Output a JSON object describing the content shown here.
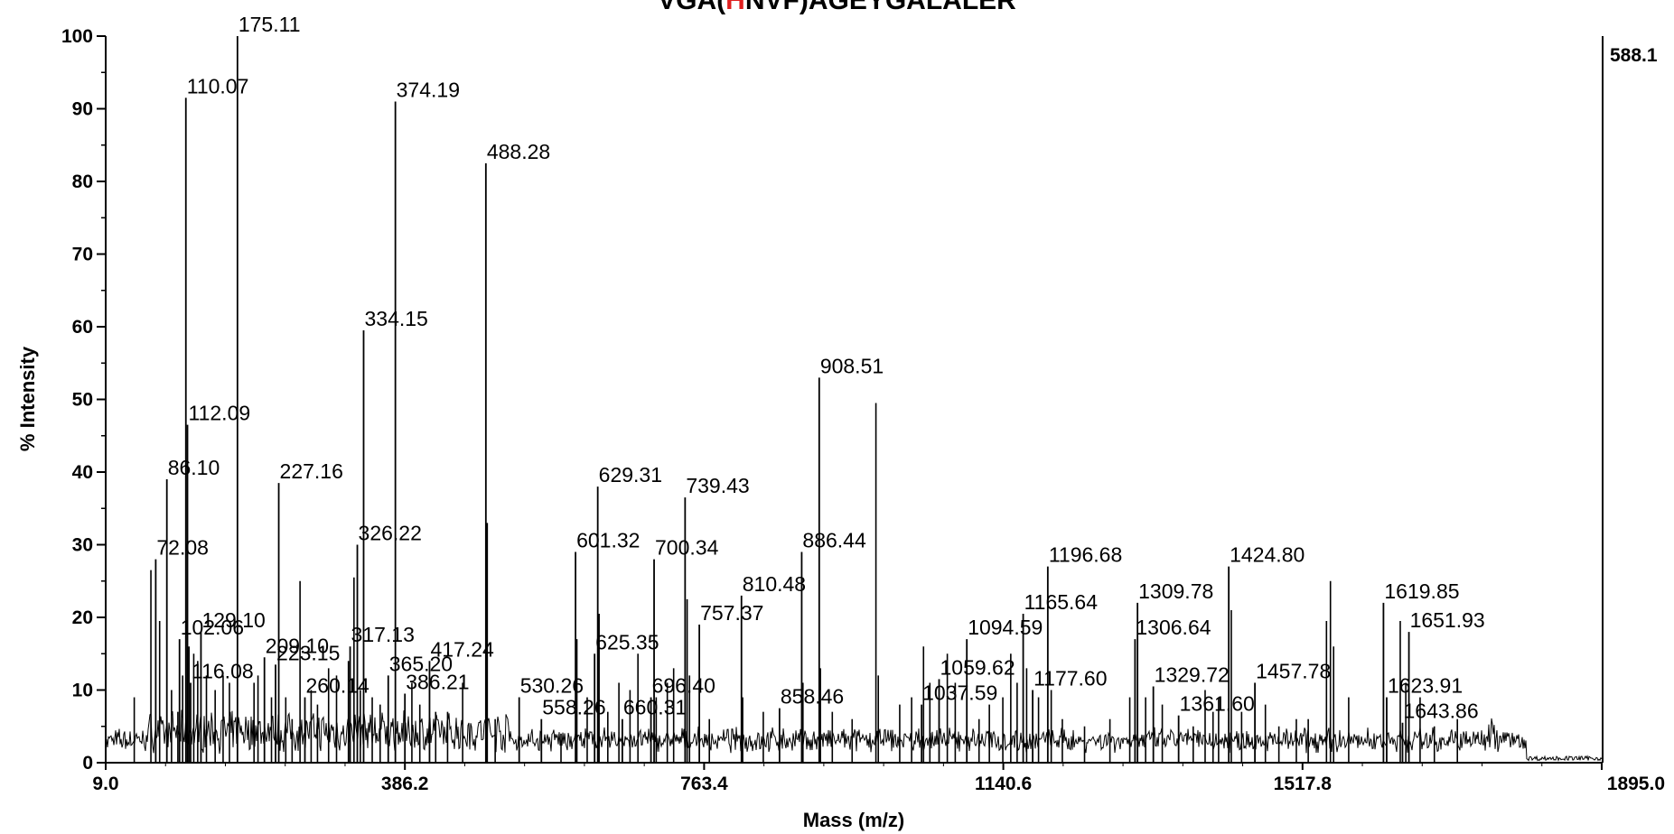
{
  "title": {
    "prefix": "VGA(",
    "highlight": "H",
    "suffix": "NVF)AGEYGALALER",
    "highlight_color": "#e02020"
  },
  "base_peak_label": "588.1",
  "chart_data": {
    "type": "line",
    "subtype": "mass-spectrum",
    "xlabel": "Mass (m/z)",
    "ylabel": "% Intensity",
    "xlim": [
      9.0,
      1895.0
    ],
    "ylim": [
      0,
      100
    ],
    "x_ticks": [
      "9.0",
      "386.2",
      "763.4",
      "1140.6",
      "1517.8",
      "1895.0"
    ],
    "y_ticks": [
      "0",
      "10",
      "20",
      "30",
      "40",
      "50",
      "60",
      "70",
      "80",
      "90",
      "100"
    ],
    "grid": false,
    "color": "#000000",
    "labeled_peaks": [
      {
        "mz": 72.08,
        "intensity": 28,
        "label": "72.08"
      },
      {
        "mz": 86.1,
        "intensity": 39,
        "label": "86.10"
      },
      {
        "mz": 102.06,
        "intensity": 17,
        "label": "102.06"
      },
      {
        "mz": 110.07,
        "intensity": 91.5,
        "label": "110.07"
      },
      {
        "mz": 112.09,
        "intensity": 46.5,
        "label": "112.09"
      },
      {
        "mz": 116.08,
        "intensity": 11,
        "label": "116.08"
      },
      {
        "mz": 129.1,
        "intensity": 18,
        "label": "129.10"
      },
      {
        "mz": 175.11,
        "intensity": 100,
        "label": "175.11"
      },
      {
        "mz": 209.1,
        "intensity": 14.5,
        "label": "209.10"
      },
      {
        "mz": 223.15,
        "intensity": 13.5,
        "label": "223.15"
      },
      {
        "mz": 227.16,
        "intensity": 38.5,
        "label": "227.16"
      },
      {
        "mz": 260.14,
        "intensity": 9,
        "label": "260.14"
      },
      {
        "mz": 317.13,
        "intensity": 16,
        "label": "317.13"
      },
      {
        "mz": 326.22,
        "intensity": 30,
        "label": "326.22"
      },
      {
        "mz": 334.15,
        "intensity": 59.5,
        "label": "334.15"
      },
      {
        "mz": 365.2,
        "intensity": 12,
        "label": "365.20"
      },
      {
        "mz": 374.19,
        "intensity": 91,
        "label": "374.19"
      },
      {
        "mz": 386.21,
        "intensity": 9.5,
        "label": "386.21"
      },
      {
        "mz": 417.24,
        "intensity": 14,
        "label": "417.24"
      },
      {
        "mz": 488.28,
        "intensity": 82.5,
        "label": "488.28"
      },
      {
        "mz": 530.26,
        "intensity": 9,
        "label": "530.26"
      },
      {
        "mz": 558.26,
        "intensity": 6,
        "label": "558.26"
      },
      {
        "mz": 601.32,
        "intensity": 29,
        "label": "601.32"
      },
      {
        "mz": 625.35,
        "intensity": 15,
        "label": "625.35"
      },
      {
        "mz": 629.31,
        "intensity": 38,
        "label": "629.31"
      },
      {
        "mz": 660.31,
        "intensity": 6,
        "label": "660.31"
      },
      {
        "mz": 696.4,
        "intensity": 9,
        "label": "696.40"
      },
      {
        "mz": 700.34,
        "intensity": 28,
        "label": "700.34"
      },
      {
        "mz": 739.43,
        "intensity": 36.5,
        "label": "739.43"
      },
      {
        "mz": 757.37,
        "intensity": 19,
        "label": "757.37"
      },
      {
        "mz": 810.48,
        "intensity": 23,
        "label": "810.48"
      },
      {
        "mz": 858.46,
        "intensity": 7.5,
        "label": "858.46"
      },
      {
        "mz": 886.44,
        "intensity": 29,
        "label": "886.44"
      },
      {
        "mz": 908.51,
        "intensity": 53,
        "label": "908.51"
      },
      {
        "mz": 1037.59,
        "intensity": 8,
        "label": "1037.59"
      },
      {
        "mz": 1059.62,
        "intensity": 11.5,
        "label": "1059.62"
      },
      {
        "mz": 1094.59,
        "intensity": 17,
        "label": "1094.59"
      },
      {
        "mz": 1165.64,
        "intensity": 20.5,
        "label": "1165.64"
      },
      {
        "mz": 1177.6,
        "intensity": 10,
        "label": "1177.60"
      },
      {
        "mz": 1196.68,
        "intensity": 27,
        "label": "1196.68"
      },
      {
        "mz": 1306.64,
        "intensity": 17,
        "label": "1306.64"
      },
      {
        "mz": 1309.78,
        "intensity": 22,
        "label": "1309.78"
      },
      {
        "mz": 1329.72,
        "intensity": 10.5,
        "label": "1329.72"
      },
      {
        "mz": 1361.6,
        "intensity": 6.5,
        "label": "1361.60"
      },
      {
        "mz": 1424.8,
        "intensity": 27,
        "label": "1424.80"
      },
      {
        "mz": 1457.78,
        "intensity": 11,
        "label": "1457.78"
      },
      {
        "mz": 1619.85,
        "intensity": 22,
        "label": "1619.85"
      },
      {
        "mz": 1623.91,
        "intensity": 9,
        "label": "1623.91"
      },
      {
        "mz": 1643.86,
        "intensity": 5.5,
        "label": "1643.86"
      },
      {
        "mz": 1651.93,
        "intensity": 18,
        "label": "1651.93"
      }
    ],
    "unlabeled_peaks": [
      {
        "mz": 45,
        "intensity": 9
      },
      {
        "mz": 66,
        "intensity": 26.5
      },
      {
        "mz": 77,
        "intensity": 19.5
      },
      {
        "mz": 92,
        "intensity": 10
      },
      {
        "mz": 100,
        "intensity": 7
      },
      {
        "mz": 106,
        "intensity": 12
      },
      {
        "mz": 114,
        "intensity": 16
      },
      {
        "mz": 120,
        "intensity": 15
      },
      {
        "mz": 125,
        "intensity": 14
      },
      {
        "mz": 136,
        "intensity": 12
      },
      {
        "mz": 147,
        "intensity": 10
      },
      {
        "mz": 157,
        "intensity": 12
      },
      {
        "mz": 165,
        "intensity": 11
      },
      {
        "mz": 196,
        "intensity": 11
      },
      {
        "mz": 201,
        "intensity": 12
      },
      {
        "mz": 218,
        "intensity": 9
      },
      {
        "mz": 236,
        "intensity": 9
      },
      {
        "mz": 244,
        "intensity": 6
      },
      {
        "mz": 254,
        "intensity": 25
      },
      {
        "mz": 268,
        "intensity": 10
      },
      {
        "mz": 276,
        "intensity": 8
      },
      {
        "mz": 290,
        "intensity": 13
      },
      {
        "mz": 300,
        "intensity": 12
      },
      {
        "mz": 315,
        "intensity": 14
      },
      {
        "mz": 322,
        "intensity": 25.5
      },
      {
        "mz": 330,
        "intensity": 10
      },
      {
        "mz": 345,
        "intensity": 9
      },
      {
        "mz": 355,
        "intensity": 8
      },
      {
        "mz": 395,
        "intensity": 11
      },
      {
        "mz": 405,
        "intensity": 8
      },
      {
        "mz": 425,
        "intensity": 7
      },
      {
        "mz": 440,
        "intensity": 7
      },
      {
        "mz": 459,
        "intensity": 11
      },
      {
        "mz": 490,
        "intensity": 33
      },
      {
        "mz": 500,
        "intensity": 6
      },
      {
        "mz": 583,
        "intensity": 4
      },
      {
        "mz": 603,
        "intensity": 17
      },
      {
        "mz": 616,
        "intensity": 9
      },
      {
        "mz": 631,
        "intensity": 20.5
      },
      {
        "mz": 642,
        "intensity": 7
      },
      {
        "mz": 656,
        "intensity": 11
      },
      {
        "mz": 670,
        "intensity": 10
      },
      {
        "mz": 680,
        "intensity": 15
      },
      {
        "mz": 703,
        "intensity": 9
      },
      {
        "mz": 717,
        "intensity": 11
      },
      {
        "mz": 725,
        "intensity": 13
      },
      {
        "mz": 742,
        "intensity": 22.5
      },
      {
        "mz": 745,
        "intensity": 12
      },
      {
        "mz": 770,
        "intensity": 6
      },
      {
        "mz": 812,
        "intensity": 9
      },
      {
        "mz": 838,
        "intensity": 7
      },
      {
        "mz": 888,
        "intensity": 11
      },
      {
        "mz": 910,
        "intensity": 13
      },
      {
        "mz": 925,
        "intensity": 7
      },
      {
        "mz": 950,
        "intensity": 6
      },
      {
        "mz": 980,
        "intensity": 49.5
      },
      {
        "mz": 983,
        "intensity": 12
      },
      {
        "mz": 1010,
        "intensity": 8
      },
      {
        "mz": 1025,
        "intensity": 9
      },
      {
        "mz": 1040,
        "intensity": 16
      },
      {
        "mz": 1048,
        "intensity": 11
      },
      {
        "mz": 1070,
        "intensity": 15
      },
      {
        "mz": 1080,
        "intensity": 11
      },
      {
        "mz": 1110,
        "intensity": 6
      },
      {
        "mz": 1123,
        "intensity": 8
      },
      {
        "mz": 1140,
        "intensity": 9
      },
      {
        "mz": 1150,
        "intensity": 15
      },
      {
        "mz": 1158,
        "intensity": 11
      },
      {
        "mz": 1170,
        "intensity": 13
      },
      {
        "mz": 1185,
        "intensity": 9
      },
      {
        "mz": 1201,
        "intensity": 10
      },
      {
        "mz": 1215,
        "intensity": 6
      },
      {
        "mz": 1243,
        "intensity": 5
      },
      {
        "mz": 1275,
        "intensity": 6
      },
      {
        "mz": 1300,
        "intensity": 9
      },
      {
        "mz": 1320,
        "intensity": 9
      },
      {
        "mz": 1341,
        "intensity": 8
      },
      {
        "mz": 1380,
        "intensity": 5
      },
      {
        "mz": 1395,
        "intensity": 10
      },
      {
        "mz": 1405,
        "intensity": 7
      },
      {
        "mz": 1412,
        "intensity": 9
      },
      {
        "mz": 1428,
        "intensity": 21
      },
      {
        "mz": 1441,
        "intensity": 7
      },
      {
        "mz": 1471,
        "intensity": 8
      },
      {
        "mz": 1488,
        "intensity": 5
      },
      {
        "mz": 1510,
        "intensity": 6
      },
      {
        "mz": 1525,
        "intensity": 6
      },
      {
        "mz": 1548,
        "intensity": 19.5
      },
      {
        "mz": 1553,
        "intensity": 25
      },
      {
        "mz": 1557,
        "intensity": 16
      },
      {
        "mz": 1576,
        "intensity": 9
      },
      {
        "mz": 1641,
        "intensity": 19.5
      },
      {
        "mz": 1648,
        "intensity": 11
      },
      {
        "mz": 1666,
        "intensity": 9
      },
      {
        "mz": 1684,
        "intensity": 5
      },
      {
        "mz": 1713,
        "intensity": 6
      }
    ]
  }
}
